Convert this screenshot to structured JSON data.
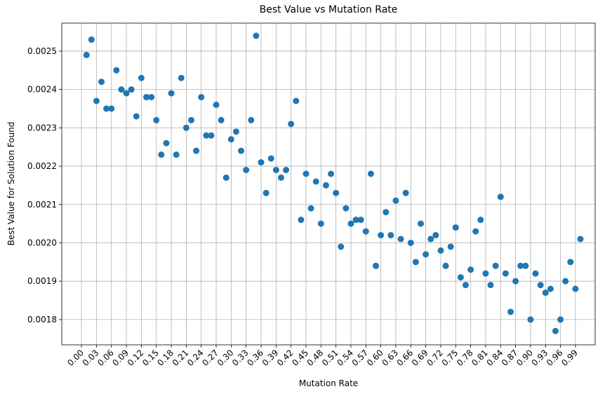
{
  "chart_data": {
    "type": "scatter",
    "title": "Best Value vs Mutation Rate",
    "x_label": "Mutation Rate",
    "y_label": "Best Value for Solution Found",
    "x": [
      0.01,
      0.02,
      0.03,
      0.04,
      0.05,
      0.06,
      0.07,
      0.08,
      0.09,
      0.1,
      0.11,
      0.12,
      0.13,
      0.14,
      0.15,
      0.16,
      0.17,
      0.18,
      0.19,
      0.2,
      0.21,
      0.22,
      0.23,
      0.24,
      0.25,
      0.26,
      0.27,
      0.28,
      0.29,
      0.3,
      0.31,
      0.32,
      0.33,
      0.34,
      0.35,
      0.36,
      0.37,
      0.38,
      0.39,
      0.4,
      0.41,
      0.42,
      0.43,
      0.44,
      0.45,
      0.46,
      0.47,
      0.48,
      0.49,
      0.5,
      0.51,
      0.52,
      0.53,
      0.54,
      0.55,
      0.56,
      0.57,
      0.58,
      0.59,
      0.6,
      0.61,
      0.62,
      0.63,
      0.64,
      0.65,
      0.66,
      0.67,
      0.68,
      0.69,
      0.7,
      0.71,
      0.72,
      0.73,
      0.74,
      0.75,
      0.76,
      0.77,
      0.78,
      0.79,
      0.8,
      0.81,
      0.82,
      0.83,
      0.84,
      0.85,
      0.86,
      0.87,
      0.88,
      0.89,
      0.9,
      0.91,
      0.92,
      0.93,
      0.94,
      0.95,
      0.96,
      0.97,
      0.98,
      0.99,
      1.0
    ],
    "values": [
      0.00249,
      0.00253,
      0.00237,
      0.00242,
      0.00235,
      0.00235,
      0.00245,
      0.0024,
      0.00239,
      0.0024,
      0.00233,
      0.00243,
      0.00238,
      0.00238,
      0.00232,
      0.00223,
      0.00226,
      0.00239,
      0.00223,
      0.00243,
      0.0023,
      0.00232,
      0.00224,
      0.00238,
      0.00228,
      0.00228,
      0.00236,
      0.00232,
      0.00217,
      0.00227,
      0.00229,
      0.00224,
      0.00219,
      0.00232,
      0.00254,
      0.00221,
      0.00213,
      0.00222,
      0.00219,
      0.00217,
      0.00219,
      0.00231,
      0.00237,
      0.00206,
      0.00218,
      0.00209,
      0.00216,
      0.00205,
      0.00215,
      0.00218,
      0.00213,
      0.00199,
      0.00209,
      0.00205,
      0.00206,
      0.00206,
      0.00203,
      0.00218,
      0.00194,
      0.00202,
      0.00208,
      0.00202,
      0.00211,
      0.00201,
      0.00213,
      0.002,
      0.00195,
      0.00205,
      0.00197,
      0.00201,
      0.00202,
      0.00198,
      0.00194,
      0.00199,
      0.00204,
      0.00191,
      0.00189,
      0.00193,
      0.00203,
      0.00206,
      0.00192,
      0.00189,
      0.00194,
      0.00212,
      0.00192,
      0.00182,
      0.0019,
      0.00194,
      0.00194,
      0.0018,
      0.00192,
      0.00189,
      0.00187,
      0.00188,
      0.00177,
      0.0018,
      0.0019,
      0.00195,
      0.00188,
      0.00201
    ],
    "color": "#1f77b4",
    "xlim": [
      -0.0395,
      1.0295
    ],
    "ylim": [
      0.001734,
      0.002573
    ],
    "grid": true,
    "xticks": [
      {
        "value": 0,
        "label": "0.00"
      },
      0.03,
      0.06,
      0.09,
      0.12,
      0.15,
      0.18,
      0.21,
      0.24,
      0.27,
      {
        "value": 0.3,
        "label": "0.30"
      },
      0.33,
      0.36,
      0.39,
      0.42,
      0.45,
      0.48,
      0.51,
      0.54,
      0.57,
      {
        "value": 0.6,
        "label": "0.60"
      },
      0.63,
      0.66,
      0.69,
      0.72,
      0.75,
      0.78,
      0.81,
      0.84,
      0.87,
      {
        "value": 0.9,
        "label": "0.90"
      },
      0.93,
      0.96,
      0.99
    ],
    "yticks": [
      0.0018,
      0.0019,
      {
        "value": 0.002,
        "label": "0.0020"
      },
      0.0021,
      0.0022,
      0.0023,
      0.0024,
      0.0025
    ]
  }
}
